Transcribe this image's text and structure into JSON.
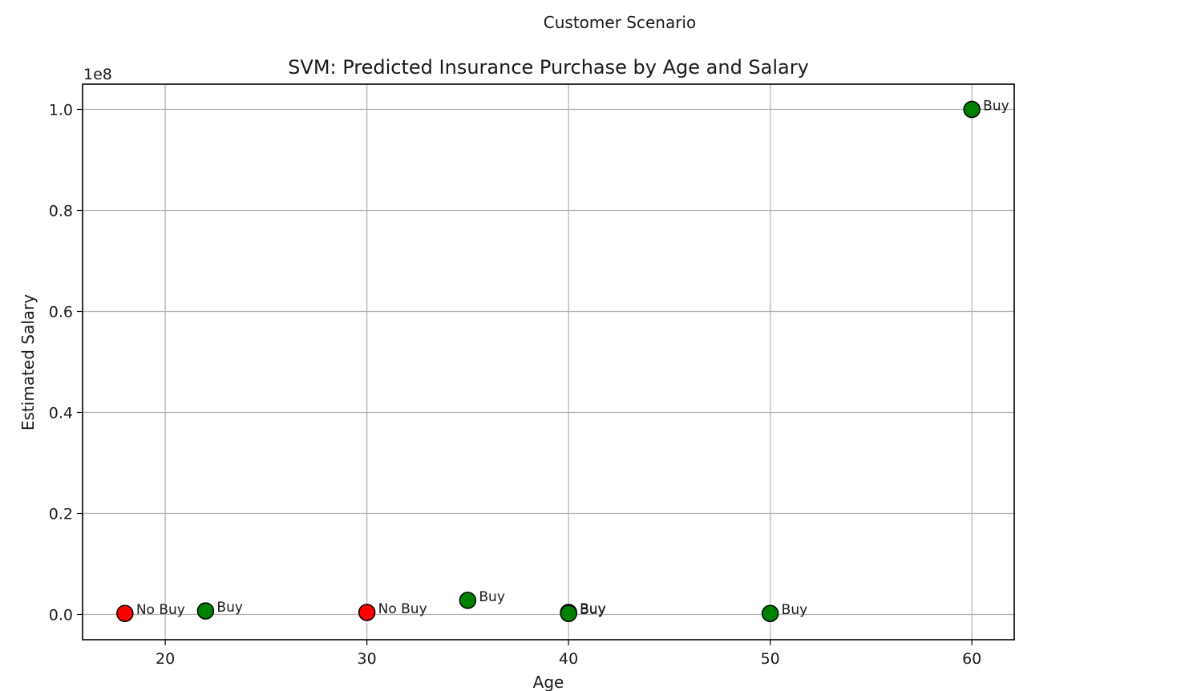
{
  "figure": {
    "suptitle": "Customer Scenario"
  },
  "colors": {
    "buy": "#008000",
    "no_buy": "#ff0000",
    "marker_edge": "#000000",
    "grid": "#b0b0b0",
    "axes": "#000000"
  },
  "chart_data": {
    "type": "scatter",
    "title": "SVM: Predicted Insurance Purchase by Age and Salary",
    "xlabel": "Age",
    "ylabel": "Estimated Salary",
    "y_offset_label": "1e8",
    "xlim": [
      15.9,
      62.1
    ],
    "ylim": [
      -0.05,
      1.05
    ],
    "y_scale_note": "values in units of 1e8",
    "xticks": [
      20,
      30,
      40,
      50,
      60
    ],
    "xtick_labels": [
      "20",
      "30",
      "40",
      "50",
      "60"
    ],
    "yticks": [
      0.0,
      0.2,
      0.4,
      0.6,
      0.8,
      1.0
    ],
    "ytick_labels": [
      "0.0",
      "0.2",
      "0.4",
      "0.6",
      "0.8",
      "1.0"
    ],
    "grid": true,
    "points": [
      {
        "x": 18,
        "y": 0.002,
        "label": "No Buy",
        "class": "no_buy"
      },
      {
        "x": 22,
        "y": 0.007,
        "label": "Buy",
        "class": "buy"
      },
      {
        "x": 30,
        "y": 0.004,
        "label": "No Buy",
        "class": "no_buy"
      },
      {
        "x": 35,
        "y": 0.028,
        "label": "Buy",
        "class": "buy"
      },
      {
        "x": 40,
        "y": 0.004,
        "label": "Buy",
        "class": "buy"
      },
      {
        "x": 40,
        "y": 0.002,
        "label": "Buy",
        "class": "buy"
      },
      {
        "x": 50,
        "y": 0.002,
        "label": "Buy",
        "class": "buy"
      },
      {
        "x": 60,
        "y": 1.0,
        "label": "Buy",
        "class": "buy"
      }
    ]
  }
}
